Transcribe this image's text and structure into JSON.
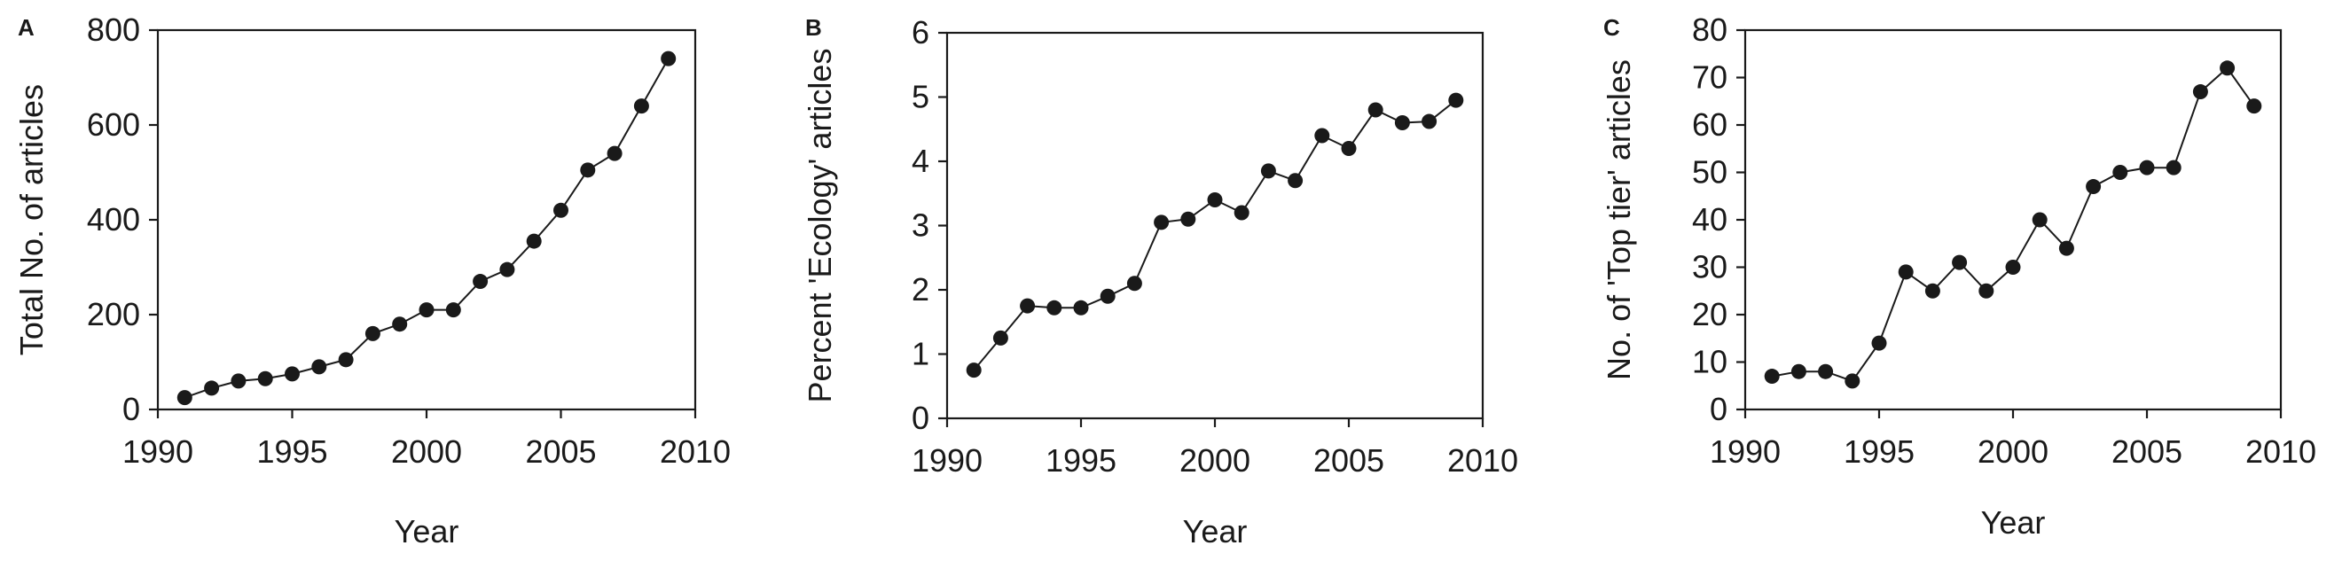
{
  "chart_data": [
    {
      "type": "line",
      "panel_label": "A",
      "title": "",
      "xlabel": "Year",
      "ylabel": "Total No. of articles",
      "xlim": [
        1990,
        2010
      ],
      "ylim": [
        0,
        800
      ],
      "xticks": [
        1990,
        1995,
        2000,
        2005,
        2010
      ],
      "yticks": [
        0,
        200,
        400,
        600,
        800
      ],
      "grid": false,
      "series": [
        {
          "x": [
            1991,
            1992,
            1993,
            1994,
            1995,
            1996,
            1997,
            1998,
            1999,
            2000,
            2001,
            2002,
            2003,
            2004,
            2005,
            2006,
            2007,
            2008,
            2009
          ],
          "y": [
            25,
            45,
            60,
            65,
            75,
            90,
            105,
            160,
            180,
            210,
            210,
            270,
            295,
            355,
            420,
            505,
            540,
            640,
            740
          ]
        }
      ]
    },
    {
      "type": "line",
      "panel_label": "B",
      "title": "",
      "xlabel": "Year",
      "ylabel": "Percent 'Ecology' articles",
      "xlim": [
        1990,
        2010
      ],
      "ylim": [
        0,
        6
      ],
      "xticks": [
        1990,
        1995,
        2000,
        2005,
        2010
      ],
      "yticks": [
        0,
        1,
        2,
        3,
        4,
        5,
        6
      ],
      "grid": false,
      "series": [
        {
          "x": [
            1991,
            1992,
            1993,
            1994,
            1995,
            1996,
            1997,
            1998,
            1999,
            2000,
            2001,
            2002,
            2003,
            2004,
            2005,
            2006,
            2007,
            2008,
            2009
          ],
          "y": [
            0.75,
            1.25,
            1.75,
            1.72,
            1.72,
            1.9,
            2.1,
            3.05,
            3.1,
            3.4,
            3.2,
            3.85,
            3.7,
            4.4,
            4.2,
            4.8,
            4.6,
            4.62,
            4.95
          ]
        }
      ]
    },
    {
      "type": "line",
      "panel_label": "C",
      "title": "",
      "xlabel": "Year",
      "ylabel": "No. of 'Top tier' articles",
      "xlim": [
        1990,
        2010
      ],
      "ylim": [
        0,
        80
      ],
      "xticks": [
        1990,
        1995,
        2000,
        2005,
        2010
      ],
      "yticks": [
        0,
        10,
        20,
        30,
        40,
        50,
        60,
        70,
        80
      ],
      "grid": false,
      "series": [
        {
          "x": [
            1991,
            1992,
            1993,
            1994,
            1995,
            1996,
            1997,
            1998,
            1999,
            2000,
            2001,
            2002,
            2003,
            2004,
            2005,
            2006,
            2007,
            2008,
            2009
          ],
          "y": [
            7,
            8,
            8,
            6,
            14,
            29,
            25,
            31,
            25,
            30,
            40,
            34,
            47,
            50,
            51,
            51,
            67,
            72,
            64
          ]
        }
      ]
    }
  ]
}
